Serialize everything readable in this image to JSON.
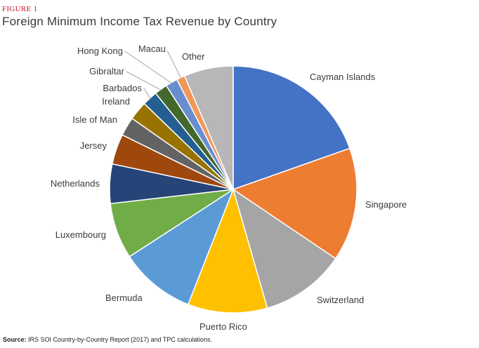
{
  "figure_label": "FIGURE 1",
  "chart_data": {
    "type": "pie",
    "title": "Foreign Minimum Income Tax Revenue by Country",
    "slices": [
      {
        "label": "Cayman Islands",
        "value": 19.8,
        "color": "#4472c4"
      },
      {
        "label": "Singapore",
        "value": 15.0,
        "color": "#ed7d31"
      },
      {
        "label": "Switzerland",
        "value": 11.2,
        "color": "#a5a5a5"
      },
      {
        "label": "Puerto Rico",
        "value": 10.5,
        "color": "#ffc000"
      },
      {
        "label": "Bermuda",
        "value": 10.0,
        "color": "#5b9bd5"
      },
      {
        "label": "Luxembourg",
        "value": 7.4,
        "color": "#70ad47"
      },
      {
        "label": "Netherlands",
        "value": 5.2,
        "color": "#264478"
      },
      {
        "label": "Jersey",
        "value": 4.0,
        "color": "#9e480e"
      },
      {
        "label": "Isle of Man",
        "value": 2.5,
        "color": "#636363"
      },
      {
        "label": "Ireland",
        "value": 2.5,
        "color": "#997300"
      },
      {
        "label": "Barbados",
        "value": 2.0,
        "color": "#255e91"
      },
      {
        "label": "Gibraltar",
        "value": 1.7,
        "color": "#43682b"
      },
      {
        "label": "Hong Kong",
        "value": 1.6,
        "color": "#698ed0"
      },
      {
        "label": "Macau",
        "value": 1.1,
        "color": "#f1975a"
      },
      {
        "label": "Other",
        "value": 6.5,
        "color": "#b7b7b7"
      }
    ]
  },
  "source": {
    "label": "Source:",
    "text": " IRS SOI Country-by-Country Report (2017) and TPC calculations."
  }
}
